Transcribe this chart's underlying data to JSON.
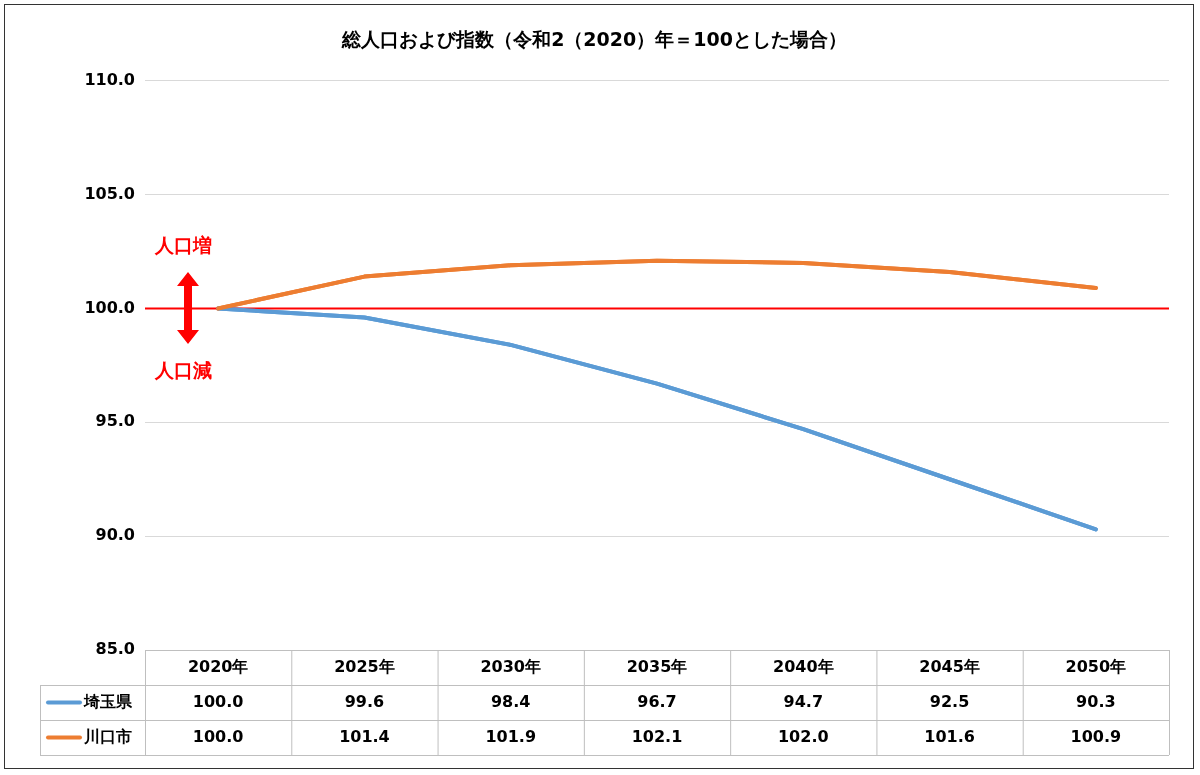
{
  "chart_data": {
    "type": "line",
    "title": "総人口および指数（令和2（2020）年＝100とした場合）",
    "categories": [
      "2020年",
      "2025年",
      "2030年",
      "2035年",
      "2040年",
      "2045年",
      "2050年"
    ],
    "series": [
      {
        "name": "埼玉県",
        "color": "#5b9bd5",
        "values": [
          100.0,
          99.6,
          98.4,
          96.7,
          94.7,
          92.5,
          90.3
        ],
        "value_labels": [
          "100.0",
          "99.6",
          "98.4",
          "96.7",
          "94.7",
          "92.5",
          "90.3"
        ]
      },
      {
        "name": "川口市",
        "color": "#ed7d31",
        "values": [
          100.0,
          101.4,
          101.9,
          102.1,
          102.0,
          101.6,
          100.9
        ],
        "value_labels": [
          "100.0",
          "101.4",
          "101.9",
          "102.1",
          "102.0",
          "101.6",
          "100.9"
        ]
      }
    ],
    "ylim": [
      85,
      110
    ],
    "yticks": [
      {
        "value": 85,
        "label": "85.0"
      },
      {
        "value": 90,
        "label": "90.0"
      },
      {
        "value": 95,
        "label": "95.0"
      },
      {
        "value": 100,
        "label": "100.0"
      },
      {
        "value": 105,
        "label": "105.0"
      },
      {
        "value": 110,
        "label": "110.0"
      }
    ],
    "grid": "y",
    "legend": "bottom",
    "marker": "none",
    "line_style": "solid",
    "ref_lines": [
      {
        "axis": "y",
        "value": 100,
        "color": "#ff0000"
      }
    ],
    "annotations": [
      "人口増",
      "人口減"
    ]
  }
}
